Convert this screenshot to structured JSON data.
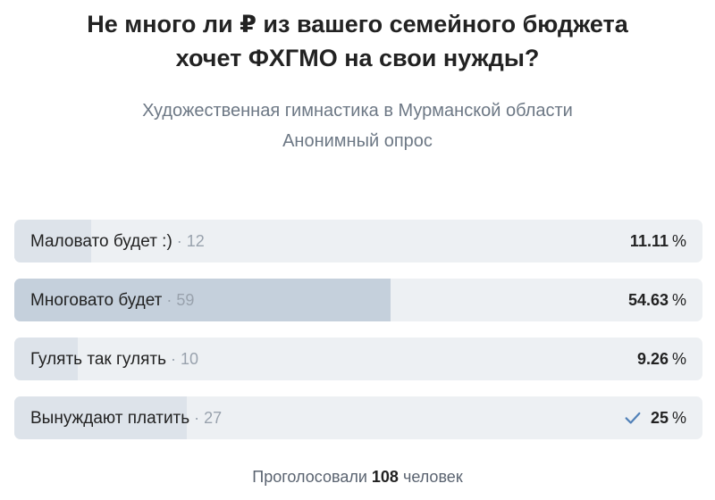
{
  "poll": {
    "title_line1": "Не много ли ₽ из вашего семейного бюджета",
    "title_line2": "хочет ФХГМО на свои нужды?",
    "community": "Художественная гимнастика в Мурманской области",
    "poll_type": "Анонимный опрос",
    "options": [
      {
        "label": "Маловато будет :)",
        "count_text": " · 12",
        "percent": 11.11,
        "percent_text": "11.11",
        "unit": "%",
        "selected": false
      },
      {
        "label": "Многовато будет",
        "count_text": " · 59",
        "percent": 54.63,
        "percent_text": "54.63",
        "unit": "%",
        "selected": false
      },
      {
        "label": "Гулять так гулять",
        "count_text": " · 10",
        "percent": 9.26,
        "percent_text": "9.26",
        "unit": "%",
        "selected": false
      },
      {
        "label": "Вынуждают платить",
        "count_text": " · 27",
        "percent": 25,
        "percent_text": "25",
        "unit": "%",
        "selected": true
      }
    ],
    "footer_prefix": "Проголосовали ",
    "footer_count": "108",
    "footer_suffix": " человек"
  },
  "colors": {
    "bar_bg": "#edf0f3",
    "bar_fill": "#dde3ea",
    "bar_fill_leader": "#c5d0dc",
    "check": "#5181b8",
    "muted_text": "#6d7885"
  },
  "icons": {
    "selected_marker": "checkmark-icon"
  }
}
